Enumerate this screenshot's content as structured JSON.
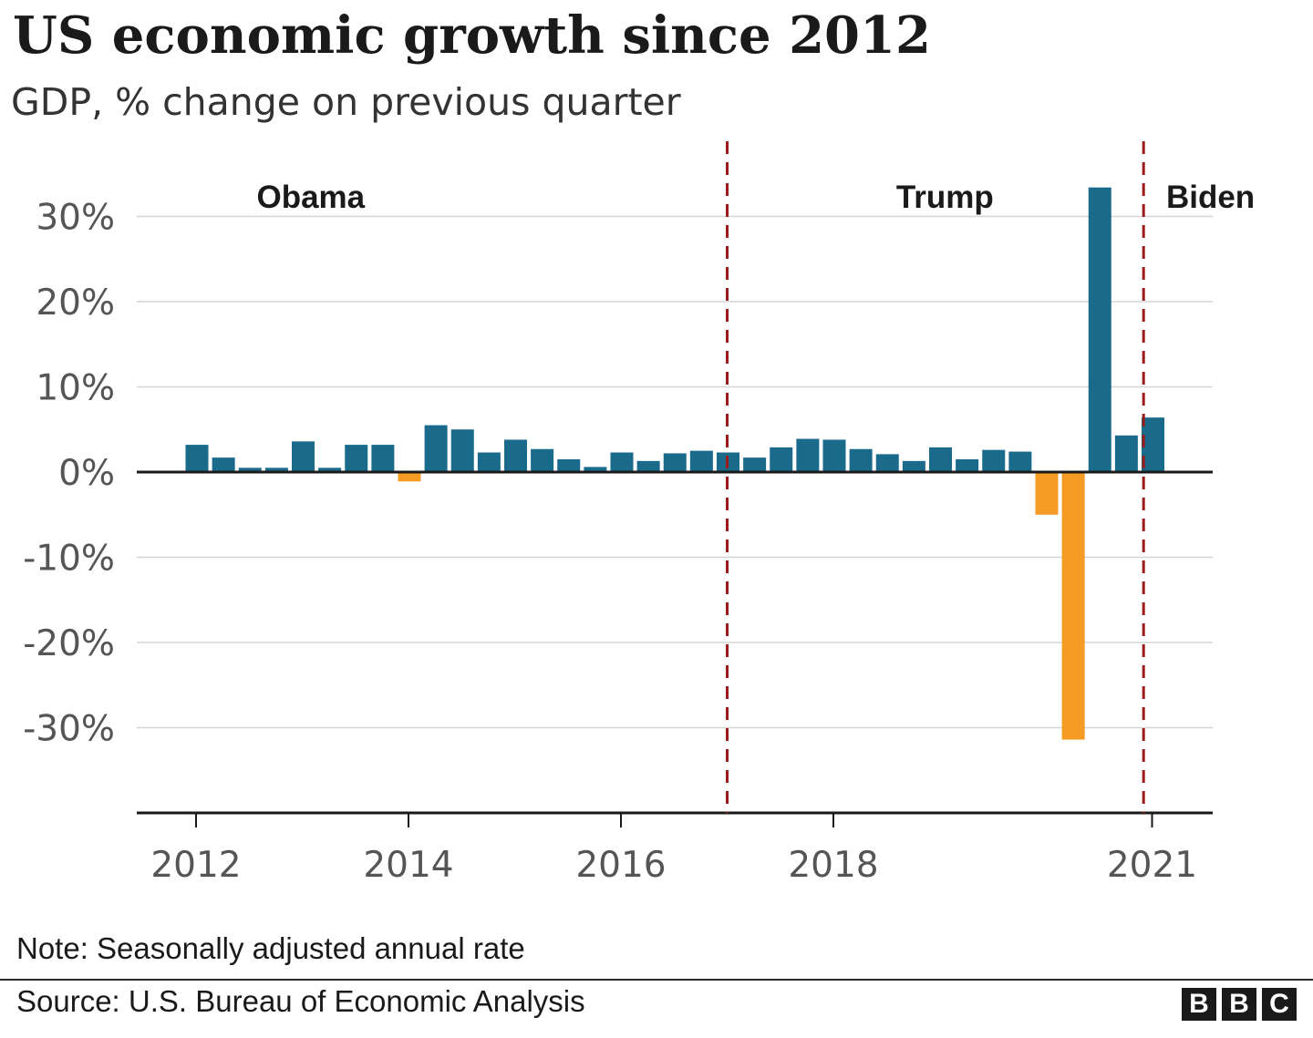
{
  "header": {
    "title": "US economic growth since 2012",
    "subtitle": "GDP, % change on previous quarter"
  },
  "footer": {
    "note": "Note: Seasonally adjusted annual rate",
    "source": "Source: U.S. Bureau of Economic Analysis",
    "logo_letters": [
      "B",
      "B",
      "C"
    ]
  },
  "chart_data": {
    "type": "bar",
    "title": "US economic growth since 2012",
    "subtitle": "GDP, % change on previous quarter",
    "xlabel": "",
    "ylabel": "",
    "ylim": [
      -40,
      34
    ],
    "yticks": [
      30,
      20,
      10,
      0,
      -10,
      -20,
      -30
    ],
    "ytick_labels": [
      "30%",
      "20%",
      "10%",
      "0%",
      "-10%",
      "-20%",
      "-30%"
    ],
    "xticks": [
      {
        "label": "2012",
        "year": 2012.0
      },
      {
        "label": "2014",
        "year": 2014.0
      },
      {
        "label": "2016",
        "year": 2016.0
      },
      {
        "label": "2018",
        "year": 2018.0
      },
      {
        "label": "2021",
        "year": 2021.0
      }
    ],
    "grid": true,
    "legend": "none",
    "colors": {
      "positive": "#1a6a8c",
      "negative": "#f59a23",
      "divider": "#9b1c1c",
      "grid": "#d6d6d6",
      "axis": "#1a1a1a"
    },
    "categories": [
      "2012 Q1",
      "2012 Q2",
      "2012 Q3",
      "2012 Q4",
      "2013 Q1",
      "2013 Q2",
      "2013 Q3",
      "2013 Q4",
      "2014 Q1",
      "2014 Q2",
      "2014 Q3",
      "2014 Q4",
      "2015 Q1",
      "2015 Q2",
      "2015 Q3",
      "2015 Q4",
      "2016 Q1",
      "2016 Q2",
      "2016 Q3",
      "2016 Q4",
      "2017 Q1",
      "2017 Q2",
      "2017 Q3",
      "2017 Q4",
      "2018 Q1",
      "2018 Q2",
      "2018 Q3",
      "2018 Q4",
      "2019 Q1",
      "2019 Q2",
      "2019 Q3",
      "2019 Q4",
      "2020 Q1",
      "2020 Q2",
      "2020 Q3",
      "2020 Q4",
      "2021 Q1"
    ],
    "values": [
      3.2,
      1.7,
      0.5,
      0.5,
      3.6,
      0.5,
      3.2,
      3.2,
      -1.1,
      5.5,
      5.0,
      2.3,
      3.8,
      2.7,
      1.5,
      0.6,
      2.3,
      1.3,
      2.2,
      2.5,
      2.3,
      1.7,
      2.9,
      3.9,
      3.8,
      2.7,
      2.1,
      1.3,
      2.9,
      1.5,
      2.6,
      2.4,
      -5.0,
      -31.4,
      33.4,
      4.3,
      6.4
    ],
    "presidents": [
      {
        "name": "Obama",
        "label_year": 2013.08
      },
      {
        "name": "Trump",
        "label_year": 2019.05
      },
      {
        "name": "Biden",
        "label_year": 2021.55
      }
    ],
    "dividers": [
      2017.0,
      2020.92
    ]
  }
}
